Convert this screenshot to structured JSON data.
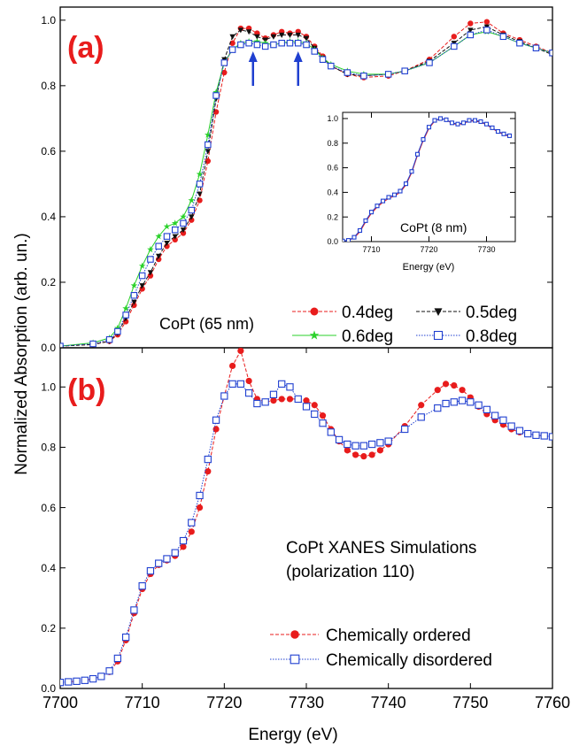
{
  "figure": {
    "ylabel": "Normalized Absorption (arb. un.)",
    "xlabel": "Energy (eV)"
  },
  "chart_data": [
    {
      "panel_label": "(a)",
      "type": "line",
      "annotation": "CoPt (65 nm)",
      "xlim": [
        7700,
        7760
      ],
      "ylim": [
        0,
        1.04
      ],
      "yticks": [
        "0.0",
        "0.2",
        "0.4",
        "0.6",
        "0.8",
        "1.0"
      ],
      "arrows_at_energy": [
        7723.5,
        7729
      ],
      "arrow_color": "#1f3fd0",
      "legend_placement": "bottom-right",
      "series": [
        {
          "name": "0.4deg",
          "color": "#e81c1c",
          "marker": "circle-filled",
          "line": "dashed",
          "x": [
            7700,
            7704,
            7706,
            7707,
            7708,
            7709,
            7710,
            7711,
            7712,
            7713,
            7714,
            7715,
            7716,
            7717,
            7718,
            7719,
            7720,
            7721,
            7722,
            7723,
            7724,
            7725,
            7726,
            7727,
            7728,
            7729,
            7730,
            7731,
            7732,
            7733,
            7735,
            7737,
            7740,
            7742,
            7745,
            7748,
            7750,
            7752,
            7754,
            7756,
            7758,
            7760
          ],
          "y": [
            0.005,
            0.01,
            0.02,
            0.04,
            0.08,
            0.13,
            0.18,
            0.22,
            0.27,
            0.31,
            0.33,
            0.35,
            0.39,
            0.45,
            0.57,
            0.72,
            0.84,
            0.93,
            0.975,
            0.975,
            0.96,
            0.945,
            0.955,
            0.965,
            0.96,
            0.965,
            0.95,
            0.92,
            0.89,
            0.86,
            0.835,
            0.825,
            0.83,
            0.845,
            0.88,
            0.95,
            0.99,
            0.995,
            0.96,
            0.94,
            0.92,
            0.9
          ]
        },
        {
          "name": "0.5deg",
          "color": "#111111",
          "marker": "triangle-down-filled",
          "line": "dashed",
          "x": [
            7700,
            7704,
            7706,
            7707,
            7708,
            7709,
            7710,
            7711,
            7712,
            7713,
            7714,
            7715,
            7716,
            7717,
            7718,
            7719,
            7720,
            7721,
            7722,
            7723,
            7724,
            7725,
            7726,
            7727,
            7728,
            7729,
            7730,
            7731,
            7732,
            7733,
            7735,
            7737,
            7740,
            7742,
            7745,
            7748,
            7750,
            7752,
            7754,
            7756,
            7758,
            7760
          ],
          "y": [
            0.005,
            0.01,
            0.02,
            0.045,
            0.09,
            0.14,
            0.19,
            0.23,
            0.28,
            0.32,
            0.34,
            0.36,
            0.4,
            0.47,
            0.6,
            0.76,
            0.88,
            0.95,
            0.97,
            0.965,
            0.95,
            0.94,
            0.95,
            0.955,
            0.955,
            0.955,
            0.945,
            0.915,
            0.885,
            0.86,
            0.835,
            0.83,
            0.835,
            0.845,
            0.875,
            0.93,
            0.97,
            0.98,
            0.955,
            0.935,
            0.915,
            0.895
          ]
        },
        {
          "name": "0.6deg",
          "color": "#2bd12b",
          "marker": "star-filled",
          "line": "solid",
          "x": [
            7700,
            7704,
            7706,
            7707,
            7708,
            7709,
            7710,
            7711,
            7712,
            7713,
            7714,
            7715,
            7716,
            7717,
            7718,
            7719,
            7720,
            7721,
            7722,
            7723,
            7724,
            7725,
            7726,
            7727,
            7728,
            7729,
            7730,
            7731,
            7732,
            7733,
            7735,
            7737,
            7740,
            7742,
            7745,
            7748,
            7750,
            7752,
            7754,
            7756,
            7758,
            7760
          ],
          "y": [
            0.005,
            0.015,
            0.03,
            0.06,
            0.12,
            0.19,
            0.25,
            0.3,
            0.34,
            0.37,
            0.38,
            0.4,
            0.45,
            0.53,
            0.65,
            0.78,
            0.87,
            0.91,
            0.93,
            0.935,
            0.935,
            0.93,
            0.925,
            0.93,
            0.935,
            0.935,
            0.93,
            0.91,
            0.885,
            0.865,
            0.845,
            0.835,
            0.835,
            0.845,
            0.87,
            0.92,
            0.955,
            0.965,
            0.95,
            0.93,
            0.915,
            0.9
          ]
        },
        {
          "name": "0.8deg",
          "color": "#1f3fd0",
          "marker": "square-open",
          "line": "dotted",
          "x": [
            7700,
            7704,
            7706,
            7707,
            7708,
            7709,
            7710,
            7711,
            7712,
            7713,
            7714,
            7715,
            7716,
            7717,
            7718,
            7719,
            7720,
            7721,
            7722,
            7723,
            7724,
            7725,
            7726,
            7727,
            7728,
            7729,
            7730,
            7731,
            7732,
            7733,
            7735,
            7737,
            7740,
            7742,
            7745,
            7748,
            7750,
            7752,
            7754,
            7756,
            7758,
            7760
          ],
          "y": [
            0.005,
            0.012,
            0.025,
            0.05,
            0.1,
            0.16,
            0.22,
            0.27,
            0.31,
            0.34,
            0.36,
            0.38,
            0.42,
            0.5,
            0.62,
            0.77,
            0.87,
            0.91,
            0.925,
            0.93,
            0.925,
            0.92,
            0.925,
            0.93,
            0.93,
            0.93,
            0.925,
            0.905,
            0.88,
            0.86,
            0.84,
            0.83,
            0.835,
            0.845,
            0.87,
            0.92,
            0.955,
            0.97,
            0.95,
            0.93,
            0.915,
            0.9
          ]
        }
      ]
    },
    {
      "panel_label": "inset",
      "type": "line",
      "annotation": "CoPt (8 nm)",
      "xlabel": "Energy (eV)",
      "xlim": [
        7705,
        7735
      ],
      "ylim": [
        0,
        1.05
      ],
      "xticks": [
        "7710",
        "7720",
        "7730"
      ],
      "yticks": [
        "0.0",
        "0.2",
        "0.4",
        "0.6",
        "0.8",
        "1.0"
      ],
      "series": [
        {
          "color": "#e81c1c",
          "line": "solid",
          "x": [
            7705,
            7706,
            7707,
            7708,
            7709,
            7710,
            7711,
            7712,
            7713,
            7714,
            7715,
            7716,
            7717,
            7718,
            7719,
            7720,
            7721,
            7722,
            7723,
            7724,
            7725,
            7726,
            7727,
            7728,
            7729,
            7730,
            7731,
            7732,
            7733,
            7734
          ],
          "y": [
            0.005,
            0.01,
            0.03,
            0.08,
            0.16,
            0.23,
            0.28,
            0.32,
            0.35,
            0.37,
            0.4,
            0.46,
            0.56,
            0.7,
            0.82,
            0.92,
            0.98,
            1.0,
            0.99,
            0.96,
            0.95,
            0.96,
            0.98,
            0.98,
            0.97,
            0.95,
            0.92,
            0.89,
            0.87,
            0.855
          ]
        },
        {
          "color": "#1f3fd0",
          "line": "solid",
          "marker": "square-open",
          "x": [
            7705,
            7706,
            7707,
            7708,
            7709,
            7710,
            7711,
            7712,
            7713,
            7714,
            7715,
            7716,
            7717,
            7718,
            7719,
            7720,
            7721,
            7722,
            7723,
            7724,
            7725,
            7726,
            7727,
            7728,
            7729,
            7730,
            7731,
            7732,
            7733,
            7734
          ],
          "y": [
            0.005,
            0.01,
            0.035,
            0.09,
            0.17,
            0.24,
            0.29,
            0.33,
            0.36,
            0.38,
            0.41,
            0.47,
            0.57,
            0.71,
            0.83,
            0.93,
            0.985,
            1.0,
            0.99,
            0.965,
            0.955,
            0.965,
            0.985,
            0.985,
            0.975,
            0.955,
            0.925,
            0.895,
            0.875,
            0.86
          ]
        }
      ]
    },
    {
      "panel_label": "(b)",
      "type": "line",
      "annotation": [
        "CoPt XANES Simulations",
        "(polarization 110)"
      ],
      "xlim": [
        7700,
        7760
      ],
      "ylim": [
        0,
        1.13
      ],
      "xticks": [
        "7700",
        "7710",
        "7720",
        "7730",
        "7740",
        "7750",
        "7760"
      ],
      "yticks": [
        "0.0",
        "0.2",
        "0.4",
        "0.6",
        "0.8",
        "1.0"
      ],
      "legend_placement": "bottom-right",
      "series": [
        {
          "name": "Chemically ordered",
          "color": "#e81c1c",
          "marker": "circle-filled",
          "line": "dashed",
          "x": [
            7700,
            7701,
            7702,
            7703,
            7704,
            7705,
            7706,
            7707,
            7708,
            7709,
            7710,
            7711,
            7712,
            7713,
            7714,
            7715,
            7716,
            7717,
            7718,
            7719,
            7720,
            7721,
            7722,
            7723,
            7724,
            7725,
            7726,
            7727,
            7728,
            7729,
            7730,
            7731,
            7732,
            7733,
            7734,
            7735,
            7736,
            7737,
            7738,
            7739,
            7740,
            7742,
            7744,
            7746,
            7747,
            7748,
            7749,
            7750,
            7751,
            7752,
            7753,
            7754,
            7755,
            7756,
            7757,
            7758,
            7759,
            7760
          ],
          "y": [
            0.02,
            0.022,
            0.024,
            0.027,
            0.032,
            0.04,
            0.055,
            0.09,
            0.16,
            0.25,
            0.33,
            0.38,
            0.41,
            0.425,
            0.44,
            0.47,
            0.52,
            0.6,
            0.72,
            0.86,
            0.97,
            1.07,
            1.12,
            1.02,
            0.96,
            0.95,
            0.955,
            0.96,
            0.96,
            0.96,
            0.955,
            0.94,
            0.905,
            0.86,
            0.82,
            0.79,
            0.775,
            0.77,
            0.775,
            0.79,
            0.81,
            0.87,
            0.94,
            0.99,
            1.01,
            1.005,
            0.99,
            0.965,
            0.935,
            0.91,
            0.89,
            0.875,
            0.86,
            0.85,
            0.845,
            0.84,
            0.838,
            0.835
          ]
        },
        {
          "name": "Chemically disordered",
          "color": "#1f3fd0",
          "marker": "square-open",
          "line": "dotted",
          "x": [
            7700,
            7701,
            7702,
            7703,
            7704,
            7705,
            7706,
            7707,
            7708,
            7709,
            7710,
            7711,
            7712,
            7713,
            7714,
            7715,
            7716,
            7717,
            7718,
            7719,
            7720,
            7721,
            7722,
            7723,
            7724,
            7725,
            7726,
            7727,
            7728,
            7729,
            7730,
            7731,
            7732,
            7733,
            7734,
            7735,
            7736,
            7737,
            7738,
            7739,
            7740,
            7742,
            7744,
            7746,
            7747,
            7748,
            7749,
            7750,
            7751,
            7752,
            7753,
            7754,
            7755,
            7756,
            7757,
            7758,
            7759,
            7760
          ],
          "y": [
            0.02,
            0.022,
            0.024,
            0.027,
            0.032,
            0.04,
            0.058,
            0.1,
            0.17,
            0.26,
            0.34,
            0.39,
            0.415,
            0.43,
            0.45,
            0.49,
            0.55,
            0.64,
            0.76,
            0.89,
            0.97,
            1.01,
            1.01,
            0.98,
            0.945,
            0.95,
            0.975,
            1.01,
            1.0,
            0.96,
            0.935,
            0.91,
            0.88,
            0.85,
            0.825,
            0.81,
            0.805,
            0.805,
            0.81,
            0.815,
            0.82,
            0.86,
            0.9,
            0.93,
            0.945,
            0.95,
            0.955,
            0.95,
            0.94,
            0.925,
            0.905,
            0.89,
            0.87,
            0.855,
            0.845,
            0.84,
            0.838,
            0.835
          ]
        }
      ]
    }
  ]
}
